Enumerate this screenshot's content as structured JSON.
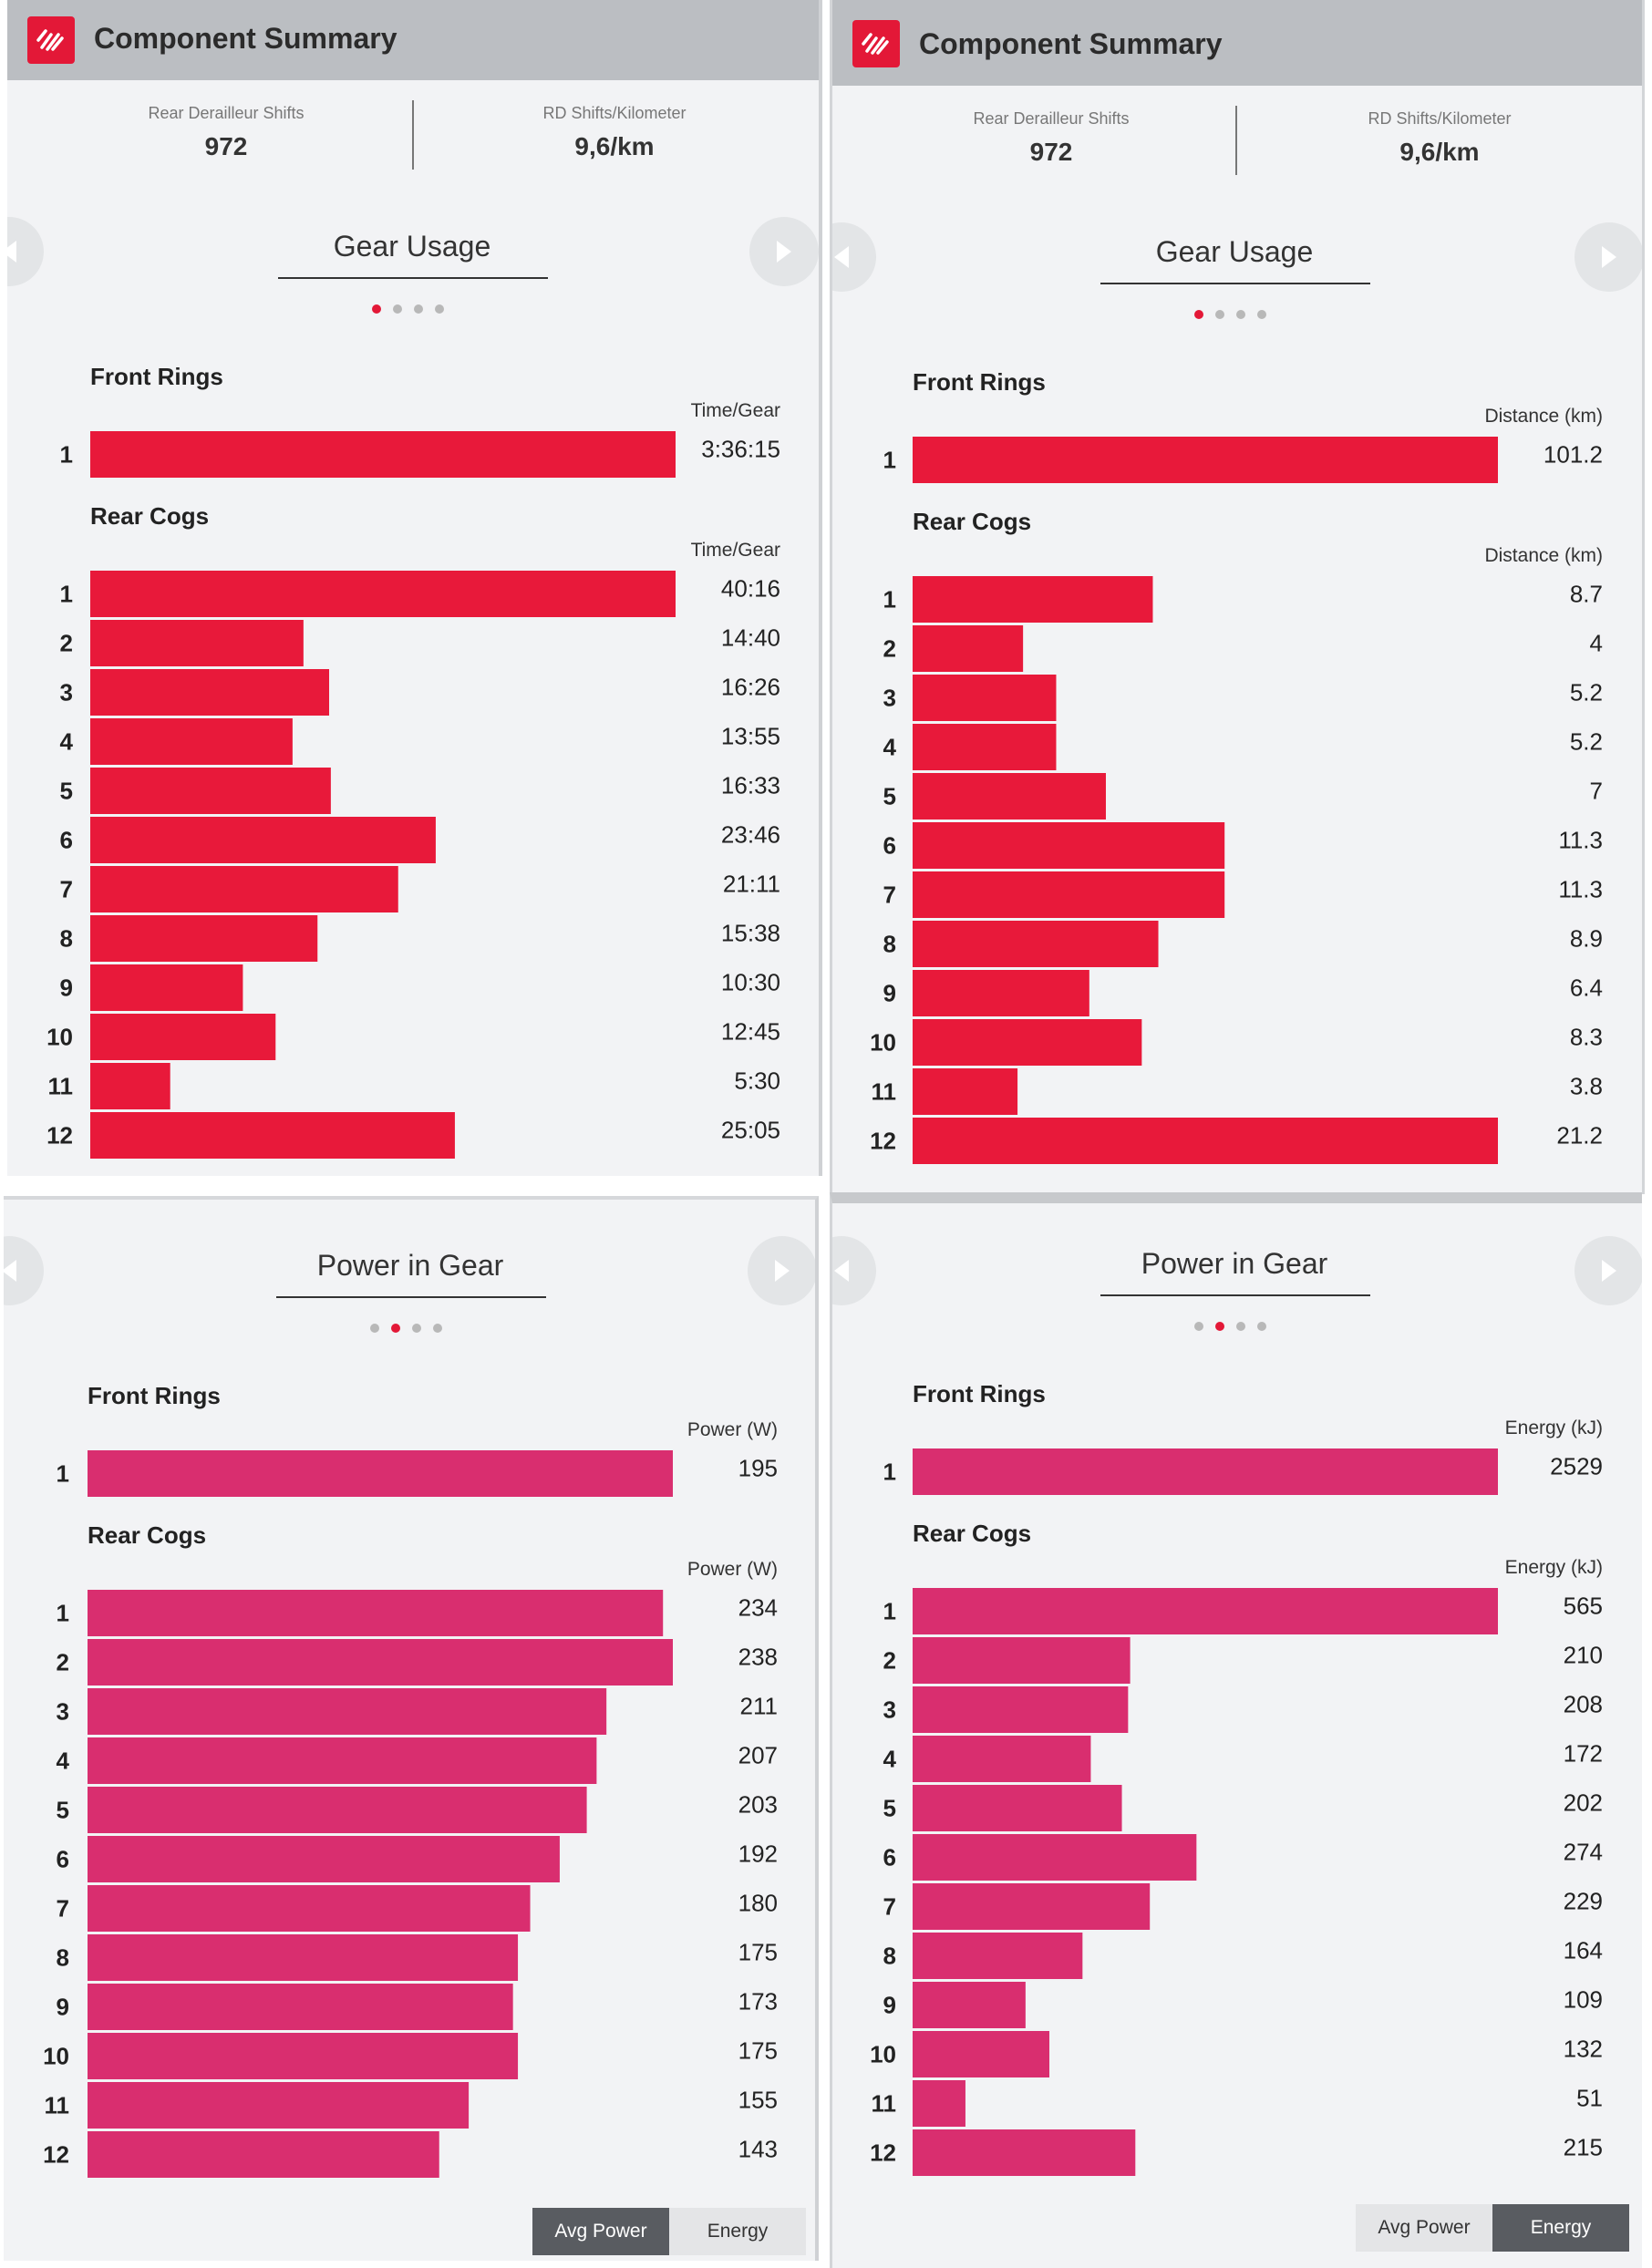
{
  "colors": {
    "red": "#e31837",
    "bar_red": "#e8193a",
    "bar_pink": "#d92e6f",
    "header_gray": "#bbbec2",
    "panel_bg": "#f2f3f5"
  },
  "header": {
    "title": "Component Summary",
    "logo_icon": "sram-logo-icon"
  },
  "stats": {
    "rd_shifts": {
      "label": "Rear Derailleur Shifts",
      "value": "972"
    },
    "rd_per_km": {
      "label": "RD Shifts/Kilometer",
      "value": "9,6/km"
    }
  },
  "labels": {
    "front_rings": "Front Rings",
    "rear_cogs": "Rear Cogs"
  },
  "toggle": {
    "avg_power": "Avg Power",
    "energy": "Energy"
  },
  "panels": {
    "gear_time": {
      "title": "Gear Usage",
      "page_count": 4,
      "active_page": 0,
      "metric": "Time/Gear"
    },
    "gear_distance": {
      "title": "Gear Usage",
      "page_count": 4,
      "active_page": 0,
      "metric": "Distance (km)"
    },
    "power_avg": {
      "title": "Power in Gear",
      "page_count": 4,
      "active_page": 1,
      "metric": "Power (W)",
      "toggle_selected": "Avg Power"
    },
    "power_energy": {
      "title": "Power in Gear",
      "page_count": 4,
      "active_page": 1,
      "metric": "Energy (kJ)",
      "toggle_selected": "Energy"
    }
  },
  "chart_data": [
    {
      "type": "bar",
      "orientation": "horizontal",
      "unit": "Time/Gear",
      "front": {
        "categories": [
          "1"
        ],
        "values": [
          12975
        ],
        "labels": [
          "3:36:15"
        ]
      },
      "rear": {
        "categories": [
          "1",
          "2",
          "3",
          "4",
          "5",
          "6",
          "7",
          "8",
          "9",
          "10",
          "11",
          "12"
        ],
        "values": [
          2416,
          880,
          986,
          835,
          993,
          1426,
          1271,
          938,
          630,
          765,
          330,
          1505
        ],
        "labels": [
          "40:16",
          "14:40",
          "16:26",
          "13:55",
          "16:33",
          "23:46",
          "21:11",
          "15:38",
          "10:30",
          "12:45",
          "5:30",
          "25:05"
        ]
      }
    },
    {
      "type": "bar",
      "orientation": "horizontal",
      "unit": "Distance (km)",
      "front": {
        "categories": [
          "1"
        ],
        "values": [
          101.2
        ],
        "labels": [
          "101.2"
        ]
      },
      "rear": {
        "categories": [
          "1",
          "2",
          "3",
          "4",
          "5",
          "6",
          "7",
          "8",
          "9",
          "10",
          "11",
          "12"
        ],
        "values": [
          8.7,
          4,
          5.2,
          5.2,
          7,
          11.3,
          11.3,
          8.9,
          6.4,
          8.3,
          3.8,
          21.2
        ],
        "labels": [
          "8.7",
          "4",
          "5.2",
          "5.2",
          "7",
          "11.3",
          "11.3",
          "8.9",
          "6.4",
          "8.3",
          "3.8",
          "21.2"
        ]
      }
    },
    {
      "type": "bar",
      "orientation": "horizontal",
      "unit": "Power (W)",
      "front": {
        "categories": [
          "1"
        ],
        "values": [
          195
        ],
        "labels": [
          "195"
        ]
      },
      "rear": {
        "categories": [
          "1",
          "2",
          "3",
          "4",
          "5",
          "6",
          "7",
          "8",
          "9",
          "10",
          "11",
          "12"
        ],
        "values": [
          234,
          238,
          211,
          207,
          203,
          192,
          180,
          175,
          173,
          175,
          155,
          143
        ],
        "labels": [
          "234",
          "238",
          "211",
          "207",
          "203",
          "192",
          "180",
          "175",
          "173",
          "175",
          "155",
          "143"
        ]
      }
    },
    {
      "type": "bar",
      "orientation": "horizontal",
      "unit": "Energy (kJ)",
      "front": {
        "categories": [
          "1"
        ],
        "values": [
          2529
        ],
        "labels": [
          "2529"
        ]
      },
      "rear": {
        "categories": [
          "1",
          "2",
          "3",
          "4",
          "5",
          "6",
          "7",
          "8",
          "9",
          "10",
          "11",
          "12"
        ],
        "values": [
          565,
          210,
          208,
          172,
          202,
          274,
          229,
          164,
          109,
          132,
          51,
          215
        ],
        "labels": [
          "565",
          "210",
          "208",
          "172",
          "202",
          "274",
          "229",
          "164",
          "109",
          "132",
          "51",
          "215"
        ]
      }
    }
  ]
}
